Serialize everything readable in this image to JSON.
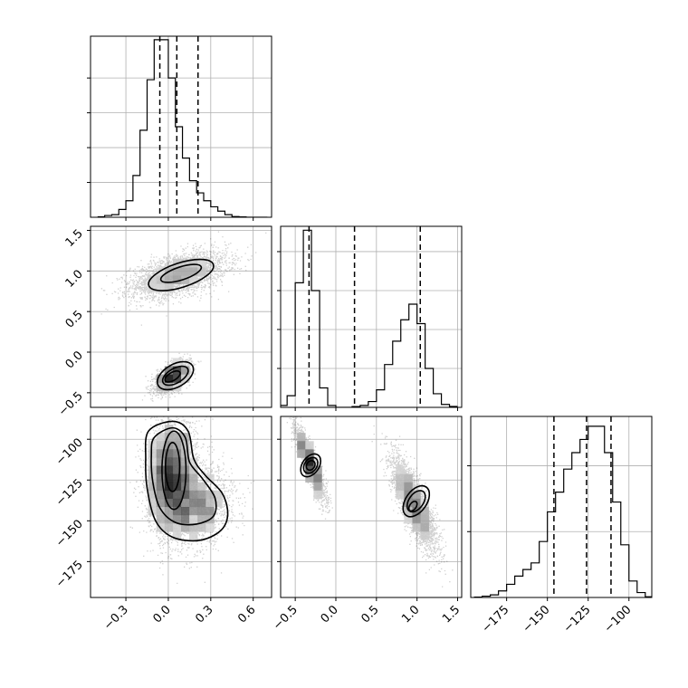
{
  "chart_data": {
    "type": "corner",
    "parameters": 3,
    "histograms": [
      {
        "param": 0,
        "bins": [
          -0.5,
          -0.45,
          -0.4,
          -0.35,
          -0.3,
          -0.25,
          -0.2,
          -0.15,
          -0.1,
          -0.05,
          0.0,
          0.05,
          0.1,
          0.15,
          0.2,
          0.25,
          0.3,
          0.35,
          0.4,
          0.45,
          0.5,
          0.55,
          0.6,
          0.65,
          0.7
        ],
        "counts": [
          0.3,
          1.0,
          1.5,
          4.5,
          9.5,
          24,
          50,
          79,
          102,
          102,
          80,
          52,
          34,
          21,
          14,
          9.5,
          6,
          3.5,
          1.5,
          0.4,
          0.2,
          0,
          0,
          0
        ],
        "quantiles": [
          -0.06,
          0.06,
          0.21
        ],
        "ymax": 104,
        "yticks": [
          20,
          40,
          60,
          80
        ]
      },
      {
        "param": 1,
        "bins": [
          -0.7,
          -0.6,
          -0.5,
          -0.4,
          -0.3,
          -0.2,
          -0.1,
          0.0,
          0.1,
          0.2,
          0.3,
          0.4,
          0.5,
          0.6,
          0.7,
          0.8,
          0.9,
          1.0,
          1.1,
          1.2,
          1.3,
          1.4,
          1.5
        ],
        "counts": [
          1,
          6,
          64,
          91,
          60,
          10,
          1,
          0,
          0,
          0.4,
          1,
          3,
          9,
          22,
          34,
          45,
          53,
          43,
          20,
          7,
          1.5,
          0.5
        ],
        "quantiles": [
          -0.33,
          0.23,
          1.04
        ],
        "ymax": 93,
        "yticks": [
          20,
          40,
          60,
          80
        ]
      },
      {
        "param": 2,
        "bins": [
          -195,
          -190,
          -185,
          -180,
          -175,
          -170,
          -165,
          -160,
          -155,
          -150,
          -145,
          -140,
          -135,
          -130,
          -125,
          -120,
          -115,
          -110,
          -105,
          -100,
          -95,
          -90,
          -85
        ],
        "counts": [
          0.1,
          0.4,
          0.8,
          2,
          4,
          6.5,
          8.5,
          10.5,
          17,
          26,
          32,
          39,
          44,
          48,
          52,
          52,
          44,
          29,
          16,
          5,
          1.5,
          0.2
        ],
        "quantiles": [
          -146,
          -126,
          -111
        ],
        "ymax": 55,
        "yticks": [
          20,
          40
        ]
      }
    ],
    "joint": [
      {
        "x_param": 0,
        "y_param": 1,
        "modes": [
          {
            "cx": 0.07,
            "cy": 0.95,
            "sx": 0.17,
            "sy": 0.14,
            "rho": 0.5,
            "n": 3000
          },
          {
            "cx": 0.03,
            "cy": -0.3,
            "sx": 0.06,
            "sy": 0.09,
            "rho": 0.55,
            "n": 2000
          }
        ],
        "contours": [
          {
            "cx": 0.09,
            "cy": 0.95,
            "rx": 0.24,
            "ry": 0.15,
            "rot": -18
          },
          {
            "cx": 0.09,
            "cy": 0.97,
            "rx": 0.15,
            "ry": 0.08,
            "rot": -18
          },
          {
            "cx": 0.05,
            "cy": -0.29,
            "rx": 0.14,
            "ry": 0.14,
            "rot": -30
          },
          {
            "cx": 0.05,
            "cy": -0.29,
            "rx": 0.1,
            "ry": 0.09,
            "rot": -30
          },
          {
            "cx": 0.03,
            "cy": -0.3,
            "rx": 0.06,
            "ry": 0.05,
            "rot": -30
          }
        ]
      },
      {
        "x_param": 0,
        "y_param": 2,
        "modes": [
          {
            "cx": 0.02,
            "cy": -122,
            "sx": 0.09,
            "sy": 17,
            "rho": 0.1,
            "n": 3200
          },
          {
            "cx": 0.2,
            "cy": -142,
            "sx": 0.13,
            "sy": 12,
            "rho": 0.2,
            "n": 1800
          }
        ],
        "contours": [
          {
            "path": [
              [
                -0.14,
                -95
              ],
              [
                0.03,
                -89
              ],
              [
                0.14,
                -95
              ],
              [
                0.18,
                -112
              ],
              [
                0.26,
                -122
              ],
              [
                0.38,
                -133
              ],
              [
                0.42,
                -146
              ],
              [
                0.37,
                -156
              ],
              [
                0.22,
                -162
              ],
              [
                0.03,
                -160
              ],
              [
                -0.09,
                -150
              ],
              [
                -0.15,
                -130
              ],
              [
                -0.16,
                -112
              ]
            ]
          },
          {
            "path": [
              [
                -0.1,
                -99
              ],
              [
                0.03,
                -93
              ],
              [
                0.12,
                -99
              ],
              [
                0.15,
                -114
              ],
              [
                0.24,
                -124
              ],
              [
                0.33,
                -136
              ],
              [
                0.32,
                -147
              ],
              [
                0.2,
                -152
              ],
              [
                0.05,
                -151
              ],
              [
                -0.06,
                -142
              ],
              [
                -0.11,
                -126
              ],
              [
                -0.12,
                -110
              ]
            ]
          },
          {
            "cx": 0.04,
            "cy": -119,
            "rx": 0.085,
            "ry": 24,
            "rot": 0
          },
          {
            "cx": 0.03,
            "cy": -117,
            "rx": 0.05,
            "ry": 15,
            "rot": 0
          }
        ]
      },
      {
        "x_param": 1,
        "y_param": 2,
        "modes": [
          {
            "cx": -0.32,
            "cy": -115,
            "sx": 0.09,
            "sy": 11,
            "rho": -0.88,
            "n": 2200
          },
          {
            "cx": 0.96,
            "cy": -140,
            "sx": 0.14,
            "sy": 14,
            "rho": -0.8,
            "n": 3000
          }
        ],
        "contours": [
          {
            "cx": -0.31,
            "cy": -116,
            "rx": 0.23,
            "ry": 0.35,
            "rot": 35
          },
          {
            "cx": -0.31,
            "cy": -116,
            "rx": 0.17,
            "ry": 0.24,
            "rot": 35
          },
          {
            "cx": -0.31,
            "cy": -116,
            "rx": 0.11,
            "ry": 0.14,
            "rot": 35
          },
          {
            "cx": 0.99,
            "cy": -138,
            "rx": 0.29,
            "ry": 0.48,
            "rot": 35
          },
          {
            "cx": 0.99,
            "cy": -138,
            "rx": 0.2,
            "ry": 0.33,
            "rot": 35
          },
          {
            "cx": 0.95,
            "cy": -141,
            "rx": 0.09,
            "ry": 0.15,
            "rot": 35
          }
        ]
      }
    ],
    "axes": {
      "p0": {
        "range": [
          -0.55,
          0.73
        ],
        "ticks": [
          -0.3,
          0.0,
          0.3,
          0.6
        ],
        "labels": [
          "−0.3",
          "0.0",
          "0.3",
          "0.6"
        ]
      },
      "p1": {
        "range": [
          -0.68,
          1.55
        ],
        "ticks": [
          -0.5,
          0.0,
          0.5,
          1.0,
          1.5
        ],
        "labels": [
          "−0.5",
          "0.0",
          "0.5",
          "1.0",
          "1.5"
        ]
      },
      "p2": {
        "range": [
          -197,
          -86
        ],
        "ticks": [
          -175,
          -150,
          -125,
          -100
        ],
        "labels": [
          "−175",
          "−150",
          "−125",
          "−100"
        ]
      }
    },
    "xlabel": "",
    "ylabel": "",
    "grid": true,
    "legend": "none"
  }
}
